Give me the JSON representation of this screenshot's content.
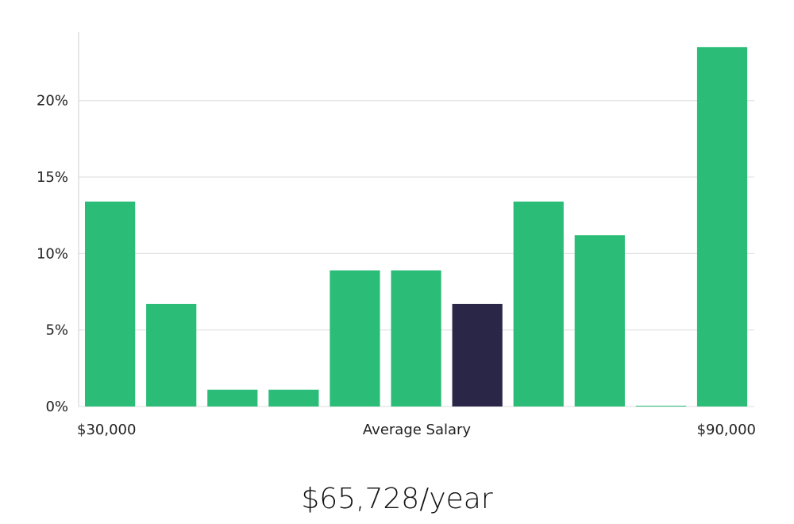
{
  "chart_data": {
    "type": "bar",
    "categories": [
      "1",
      "2",
      "3",
      "4",
      "5",
      "6",
      "7",
      "8",
      "9",
      "10",
      "11"
    ],
    "values": [
      13.4,
      6.7,
      1.1,
      1.1,
      8.9,
      8.9,
      6.7,
      13.4,
      11.2,
      0.05,
      23.5
    ],
    "highlight_index": 6,
    "ylim": [
      0,
      24.5
    ],
    "yticks": [
      0,
      5,
      10,
      15,
      20
    ],
    "ytick_labels": [
      "0%",
      "5%",
      "10%",
      "15%",
      "20%"
    ],
    "xlabel_left": "$30,000",
    "xlabel_center": "Average Salary",
    "xlabel_right": "$90,000",
    "grid": true,
    "colors": {
      "bar": "#2bbd77",
      "highlight": "#2a2647"
    }
  },
  "salary_text": "$65,728/year"
}
